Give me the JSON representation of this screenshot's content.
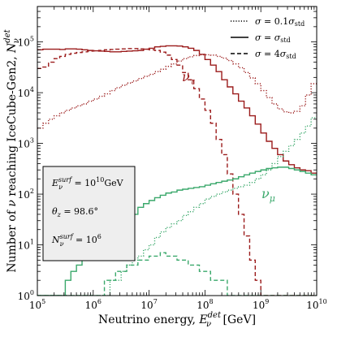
{
  "chart_data": {
    "type": "line",
    "style": "step histogram, log-log axes",
    "title": "",
    "xlabel": "Neutrino energy, E_ν^det [GeV]",
    "ylabel": "Number of ν reaching IceCube-Gen2, N_ν^det",
    "xscale": "log",
    "yscale": "log",
    "xlim": [
      100000,
      10000000000
    ],
    "ylim": [
      1,
      500000
    ],
    "xticks": [
      {
        "value": 100000,
        "label_base": "10",
        "label_exp": "5"
      },
      {
        "value": 1000000,
        "label_base": "10",
        "label_exp": "6"
      },
      {
        "value": 10000000,
        "label_base": "10",
        "label_exp": "7"
      },
      {
        "value": 100000000,
        "label_base": "10",
        "label_exp": "8"
      },
      {
        "value": 1000000000,
        "label_base": "10",
        "label_exp": "9"
      },
      {
        "value": 10000000000,
        "label_base": "10",
        "label_exp": "10"
      }
    ],
    "yticks": [
      {
        "value": 1,
        "label_base": "10",
        "label_exp": "0"
      },
      {
        "value": 10,
        "label_base": "10",
        "label_exp": "1"
      },
      {
        "value": 100,
        "label_base": "10",
        "label_exp": "2"
      },
      {
        "value": 1000,
        "label_base": "10",
        "label_exp": "3"
      },
      {
        "value": 10000,
        "label_base": "10",
        "label_exp": "4"
      },
      {
        "value": 100000,
        "label_base": "10",
        "label_exp": "5"
      }
    ],
    "bin_log10_edges": {
      "start": 5.0,
      "stop": 10.0,
      "count": 50
    },
    "legend": {
      "placement": "top-right",
      "entries": [
        {
          "style": "dotted",
          "label": "σ = 0.1σ_std"
        },
        {
          "style": "solid",
          "label": "σ = σ_std"
        },
        {
          "style": "dashed",
          "label": "σ = 4σ_std"
        }
      ]
    },
    "infobox": {
      "placement": "lower-left",
      "lines": [
        "E_ν^surf = 10^10 GeV",
        "θ_z = 98.6°",
        "N_ν^surf = 10^6"
      ]
    },
    "annotations": [
      {
        "label": "ν_τ",
        "near_x": 200000000,
        "near_y": 40000,
        "color": "#9b1b1b"
      },
      {
        "label": "ν_μ",
        "near_x": 1500000000,
        "near_y": 120,
        "color": "#3aa86b"
      }
    ],
    "colors": {
      "nu_tau": "#9b1b1b",
      "nu_mu": "#3aa86b",
      "infobox_fill": "#eeeeee"
    },
    "series": [
      {
        "flavor": "nu_tau",
        "style": "solid",
        "values": [
          70000,
          72000,
          72000,
          72000,
          71000,
          73000,
          73000,
          72000,
          70000,
          68000,
          67000,
          66000,
          65000,
          64000,
          64000,
          65000,
          66000,
          67000,
          68000,
          72000,
          75000,
          80000,
          82000,
          84000,
          84000,
          83000,
          80000,
          75000,
          68000,
          57000,
          45000,
          35000,
          26000,
          18000,
          13000,
          9500,
          6800,
          5000,
          3500,
          2400,
          1600,
          1100,
          800,
          600,
          450,
          380,
          330,
          300,
          290,
          260
        ]
      },
      {
        "flavor": "nu_tau",
        "style": "dashed",
        "values": [
          30000,
          32000,
          40000,
          47000,
          52000,
          57000,
          60000,
          62000,
          64000,
          66000,
          67000,
          68000,
          70000,
          71000,
          72000,
          73000,
          74000,
          74000,
          73000,
          72000,
          70000,
          68000,
          63000,
          55000,
          45000,
          35000,
          25000,
          18000,
          12000,
          7500,
          4500,
          2500,
          1200,
          600,
          250,
          100,
          40,
          15,
          5,
          2,
          1,
          1,
          1,
          1,
          1,
          1,
          1,
          1,
          1,
          1
        ]
      },
      {
        "flavor": "nu_tau",
        "style": "dotted",
        "values": [
          2000,
          2500,
          3000,
          3500,
          4000,
          4500,
          5000,
          5500,
          6000,
          6800,
          7500,
          8500,
          9500,
          11000,
          12500,
          14000,
          15500,
          17000,
          19000,
          21000,
          23000,
          26000,
          29000,
          33000,
          37000,
          42000,
          47000,
          51000,
          54000,
          56000,
          56000,
          55000,
          52000,
          48000,
          43000,
          37000,
          31000,
          25000,
          19500,
          15000,
          11000,
          8000,
          6000,
          4800,
          4200,
          4000,
          4300,
          5500,
          9000,
          15000
        ]
      },
      {
        "flavor": "nu_mu",
        "style": "solid",
        "values": [
          1,
          1,
          1,
          1,
          1,
          2,
          3,
          4,
          5,
          6,
          7,
          9,
          10,
          12,
          15,
          20,
          28,
          40,
          55,
          65,
          75,
          85,
          95,
          105,
          110,
          120,
          125,
          130,
          135,
          140,
          150,
          160,
          170,
          180,
          190,
          200,
          220,
          240,
          260,
          280,
          300,
          320,
          330,
          340,
          340,
          320,
          300,
          280,
          260,
          240
        ]
      },
      {
        "flavor": "nu_mu",
        "style": "dashed",
        "values": [
          1,
          1,
          1,
          1,
          1,
          1,
          1,
          1,
          1,
          1,
          1,
          1,
          2,
          2,
          3,
          3,
          4,
          4,
          5,
          5,
          6,
          6,
          7,
          6,
          6,
          5,
          5,
          4,
          4,
          3,
          3,
          2,
          2,
          2,
          1,
          1,
          1,
          1,
          1,
          1,
          1,
          1,
          1,
          1,
          1,
          1,
          1,
          1,
          1,
          1
        ]
      },
      {
        "flavor": "nu_mu",
        "style": "dotted",
        "values": [
          1,
          1,
          1,
          1,
          1,
          1,
          1,
          1,
          1,
          1,
          1,
          1,
          1,
          2,
          2,
          3,
          4,
          5,
          6,
          8,
          10,
          14,
          18,
          22,
          26,
          30,
          38,
          45,
          55,
          65,
          80,
          90,
          100,
          110,
          120,
          130,
          140,
          150,
          170,
          200,
          240,
          300,
          400,
          550,
          700,
          900,
          1200,
          1600,
          2200,
          3200
        ]
      }
    ]
  }
}
